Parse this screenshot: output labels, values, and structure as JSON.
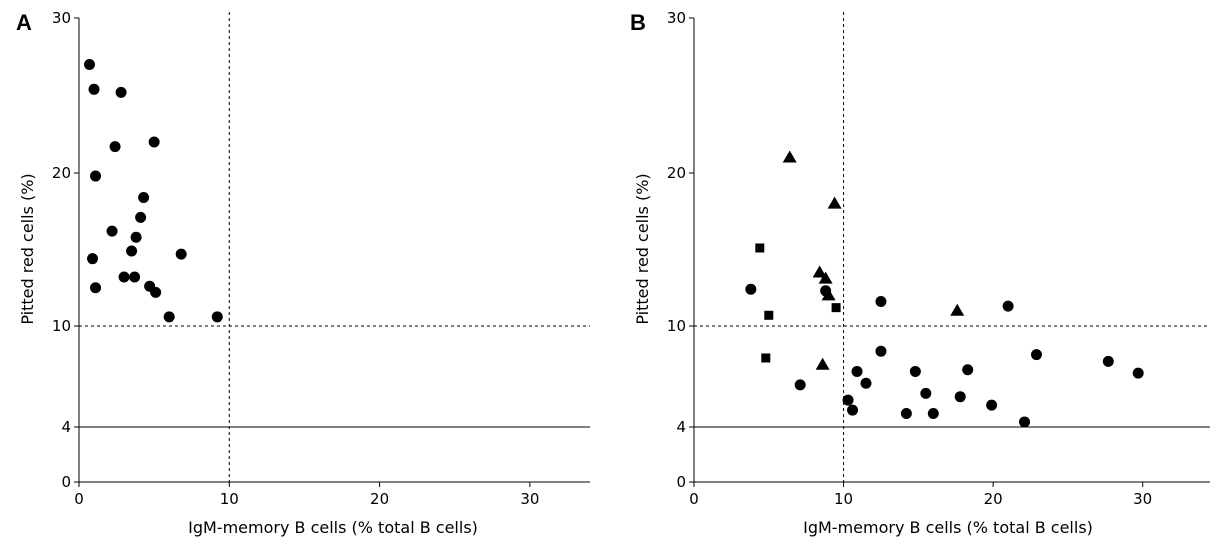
{
  "chart_data": [
    {
      "type": "scatter",
      "panel_label": "A",
      "xlabel": "IgM-memory B cells (% total B cells)",
      "ylabel": "Pitted red cells (%)",
      "xlim": [
        0,
        34
      ],
      "ylim": [
        0,
        30
      ],
      "xticks": [
        0,
        10,
        20,
        30
      ],
      "yticks": [
        0,
        4,
        10,
        20,
        30
      ],
      "reference_lines": [
        {
          "axis": "x",
          "value": 10,
          "style": "dashed"
        },
        {
          "axis": "y",
          "value": 10,
          "style": "dashed"
        },
        {
          "axis": "y",
          "value": 4,
          "style": "solid"
        }
      ],
      "series": [
        {
          "marker": "circle",
          "points": [
            [
              0.7,
              27.0
            ],
            [
              1.0,
              25.4
            ],
            [
              2.8,
              25.2
            ],
            [
              5.0,
              22.0
            ],
            [
              2.4,
              21.7
            ],
            [
              1.1,
              19.8
            ],
            [
              4.3,
              18.4
            ],
            [
              4.1,
              17.1
            ],
            [
              2.2,
              16.2
            ],
            [
              3.8,
              15.8
            ],
            [
              3.5,
              14.9
            ],
            [
              6.8,
              14.7
            ],
            [
              0.9,
              14.4
            ],
            [
              3.0,
              13.2
            ],
            [
              3.7,
              13.2
            ],
            [
              4.7,
              12.6
            ],
            [
              1.1,
              12.5
            ],
            [
              5.1,
              12.2
            ],
            [
              6.0,
              10.6
            ],
            [
              9.2,
              10.6
            ]
          ]
        }
      ]
    },
    {
      "type": "scatter",
      "panel_label": "B",
      "xlabel": "IgM-memory B cells (% total B cells)",
      "ylabel": "Pitted red cells (%)",
      "xlim": [
        0,
        34.5
      ],
      "ylim": [
        0,
        30
      ],
      "xticks": [
        0,
        10,
        20,
        30
      ],
      "yticks": [
        0,
        4,
        10,
        20,
        30
      ],
      "reference_lines": [
        {
          "axis": "x",
          "value": 10,
          "style": "dashed"
        },
        {
          "axis": "y",
          "value": 10,
          "style": "dashed"
        },
        {
          "axis": "y",
          "value": 4,
          "style": "solid"
        }
      ],
      "series": [
        {
          "marker": "circle",
          "points": [
            [
              3.8,
              12.4
            ],
            [
              8.8,
              12.3
            ],
            [
              12.5,
              11.6
            ],
            [
              21.0,
              11.3
            ],
            [
              12.5,
              8.5
            ],
            [
              22.9,
              8.3
            ],
            [
              27.7,
              7.9
            ],
            [
              18.3,
              7.4
            ],
            [
              10.9,
              7.3
            ],
            [
              14.8,
              7.3
            ],
            [
              29.7,
              7.2
            ],
            [
              11.5,
              6.6
            ],
            [
              7.1,
              6.5
            ],
            [
              15.5,
              6.0
            ],
            [
              17.8,
              5.8
            ],
            [
              10.3,
              5.6
            ],
            [
              19.9,
              5.3
            ],
            [
              10.6,
              5.0
            ],
            [
              14.2,
              4.8
            ],
            [
              16.0,
              4.8
            ],
            [
              22.1,
              4.3
            ]
          ]
        },
        {
          "marker": "square",
          "points": [
            [
              4.4,
              15.1
            ],
            [
              5.0,
              10.7
            ],
            [
              9.5,
              11.2
            ],
            [
              4.8,
              8.1
            ]
          ]
        },
        {
          "marker": "triangle",
          "points": [
            [
              6.4,
              21.0
            ],
            [
              9.4,
              18.0
            ],
            [
              8.4,
              13.5
            ],
            [
              8.8,
              13.1
            ],
            [
              9.0,
              12.0
            ],
            [
              17.6,
              11.0
            ],
            [
              8.6,
              7.7
            ]
          ]
        }
      ]
    }
  ]
}
